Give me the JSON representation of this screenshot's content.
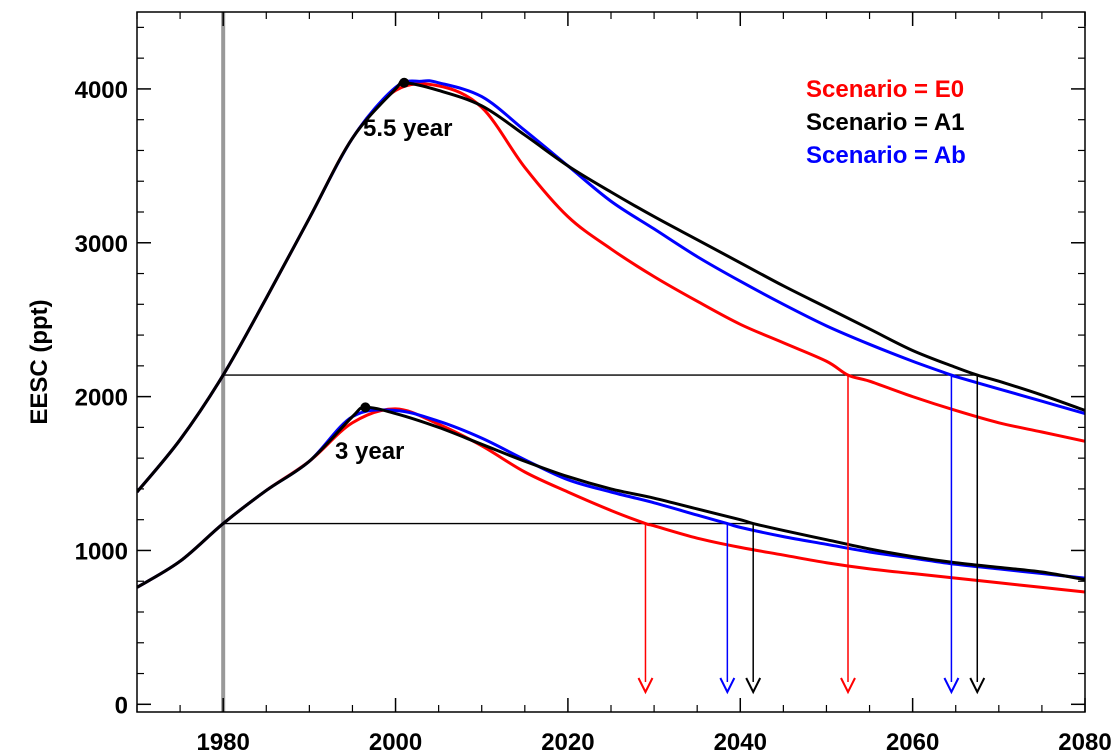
{
  "chart_data": {
    "type": "line",
    "title": "",
    "xlabel": "",
    "ylabel": "EESC (ppt)",
    "xlim": [
      1970,
      2080
    ],
    "ylim": [
      -50,
      4500
    ],
    "xticks": [
      1980,
      2000,
      2020,
      2040,
      2060,
      2080
    ],
    "yticks": [
      0,
      1000,
      2000,
      3000,
      4000
    ],
    "x_minor_step": 5,
    "y_minor_step": 200,
    "grid": false,
    "legend_position": "top-right",
    "legend": [
      {
        "label": "Scenario = E0",
        "color": "#ff0000"
      },
      {
        "label": "Scenario = A1",
        "color": "#000000"
      },
      {
        "label": "Scenario = Ab",
        "color": "#0000ff"
      }
    ],
    "reference_year": 1980,
    "reference_line_color": "#999999",
    "curve_groups": [
      {
        "annotation": "5.5 year",
        "peak": {
          "x": 2001,
          "y": 4040
        },
        "threshold": 2140,
        "series": [
          {
            "scenario": "E0",
            "color": "#ff0000",
            "x": [
              1970,
              1975,
              1980,
              1985,
              1990,
              1995,
              2000,
              2005,
              2010,
              2015,
              2020,
              2025,
              2030,
              2035,
              2040,
              2045,
              2050,
              2052.5,
              2055,
              2060,
              2065,
              2070,
              2075,
              2080
            ],
            "y": [
              1380,
              1720,
              2140,
              2640,
              3160,
              3680,
              3990,
              4020,
              3880,
              3490,
              3170,
              2960,
              2780,
              2620,
              2470,
              2350,
              2230,
              2140,
              2100,
              2000,
              1910,
              1830,
              1770,
              1710
            ]
          },
          {
            "scenario": "A1",
            "color": "#000000",
            "x": [
              1970,
              1975,
              1980,
              1985,
              1990,
              1995,
              2000,
              2001,
              2005,
              2010,
              2015,
              2020,
              2025,
              2030,
              2035,
              2040,
              2045,
              2050,
              2055,
              2060,
              2065,
              2067.5,
              2070,
              2075,
              2080
            ],
            "y": [
              1380,
              1720,
              2140,
              2640,
              3160,
              3680,
              4000,
              4040,
              3990,
              3890,
              3700,
              3500,
              3330,
              3170,
              3020,
              2870,
              2720,
              2580,
              2440,
              2300,
              2190,
              2140,
              2100,
              2010,
              1910
            ]
          },
          {
            "scenario": "Ab",
            "color": "#0000ff",
            "x": [
              1970,
              1975,
              1980,
              1985,
              1990,
              1995,
              2000,
              2003,
              2005,
              2010,
              2015,
              2020,
              2025,
              2030,
              2035,
              2040,
              2045,
              2050,
              2055,
              2060,
              2064.5,
              2065,
              2070,
              2075,
              2080
            ],
            "y": [
              1380,
              1720,
              2140,
              2640,
              3160,
              3680,
              4010,
              4050,
              4040,
              3950,
              3730,
              3500,
              3270,
              3090,
              2910,
              2750,
              2600,
              2460,
              2340,
              2230,
              2140,
              2130,
              2050,
              1970,
              1890
            ]
          }
        ]
      },
      {
        "annotation": "3 year",
        "peak": {
          "x": 1996.5,
          "y": 1930
        },
        "threshold": 1175,
        "series": [
          {
            "scenario": "E0",
            "color": "#ff0000",
            "x": [
              1970,
              1975,
              1980,
              1985,
              1990,
              1995,
              2000,
              2005,
              2010,
              2015,
              2020,
              2025,
              2029,
              2030,
              2035,
              2040,
              2045,
              2050,
              2055,
              2060,
              2065,
              2070,
              2075,
              2080
            ],
            "y": [
              760,
              930,
              1175,
              1390,
              1580,
              1830,
              1920,
              1820,
              1680,
              1510,
              1380,
              1260,
              1175,
              1160,
              1080,
              1020,
              970,
              920,
              880,
              850,
              820,
              790,
              760,
              730
            ]
          },
          {
            "scenario": "A1",
            "color": "#000000",
            "x": [
              1970,
              1975,
              1980,
              1985,
              1990,
              1995,
              1996.5,
              2000,
              2005,
              2010,
              2015,
              2020,
              2025,
              2030,
              2035,
              2040,
              2041.5,
              2045,
              2050,
              2055,
              2060,
              2065,
              2070,
              2075,
              2080
            ],
            "y": [
              760,
              930,
              1175,
              1390,
              1580,
              1870,
              1930,
              1890,
              1800,
              1690,
              1580,
              1480,
              1400,
              1340,
              1270,
              1200,
              1175,
              1130,
              1070,
              1010,
              960,
              920,
              890,
              860,
              810
            ]
          },
          {
            "scenario": "Ab",
            "color": "#0000ff",
            "x": [
              1970,
              1975,
              1980,
              1985,
              1990,
              1995,
              2000,
              2005,
              2010,
              2015,
              2020,
              2025,
              2030,
              2035,
              2038.5,
              2040,
              2045,
              2050,
              2055,
              2060,
              2065,
              2070,
              2075,
              2080
            ],
            "y": [
              760,
              930,
              1175,
              1390,
              1580,
              1870,
              1910,
              1840,
              1730,
              1590,
              1460,
              1380,
              1310,
              1230,
              1175,
              1150,
              1090,
              1040,
              990,
              950,
              910,
              880,
              850,
              820
            ]
          }
        ]
      }
    ],
    "arrows": [
      {
        "x": 2029,
        "color": "#ff0000",
        "from_y": 1175
      },
      {
        "x": 2038.5,
        "color": "#0000ff",
        "from_y": 1175
      },
      {
        "x": 2041.5,
        "color": "#000000",
        "from_y": 1175
      },
      {
        "x": 2052.5,
        "color": "#ff0000",
        "from_y": 2140
      },
      {
        "x": 2064.5,
        "color": "#0000ff",
        "from_y": 2140
      },
      {
        "x": 2067.5,
        "color": "#000000",
        "from_y": 2140
      }
    ],
    "arrow_tip_y": 80
  }
}
